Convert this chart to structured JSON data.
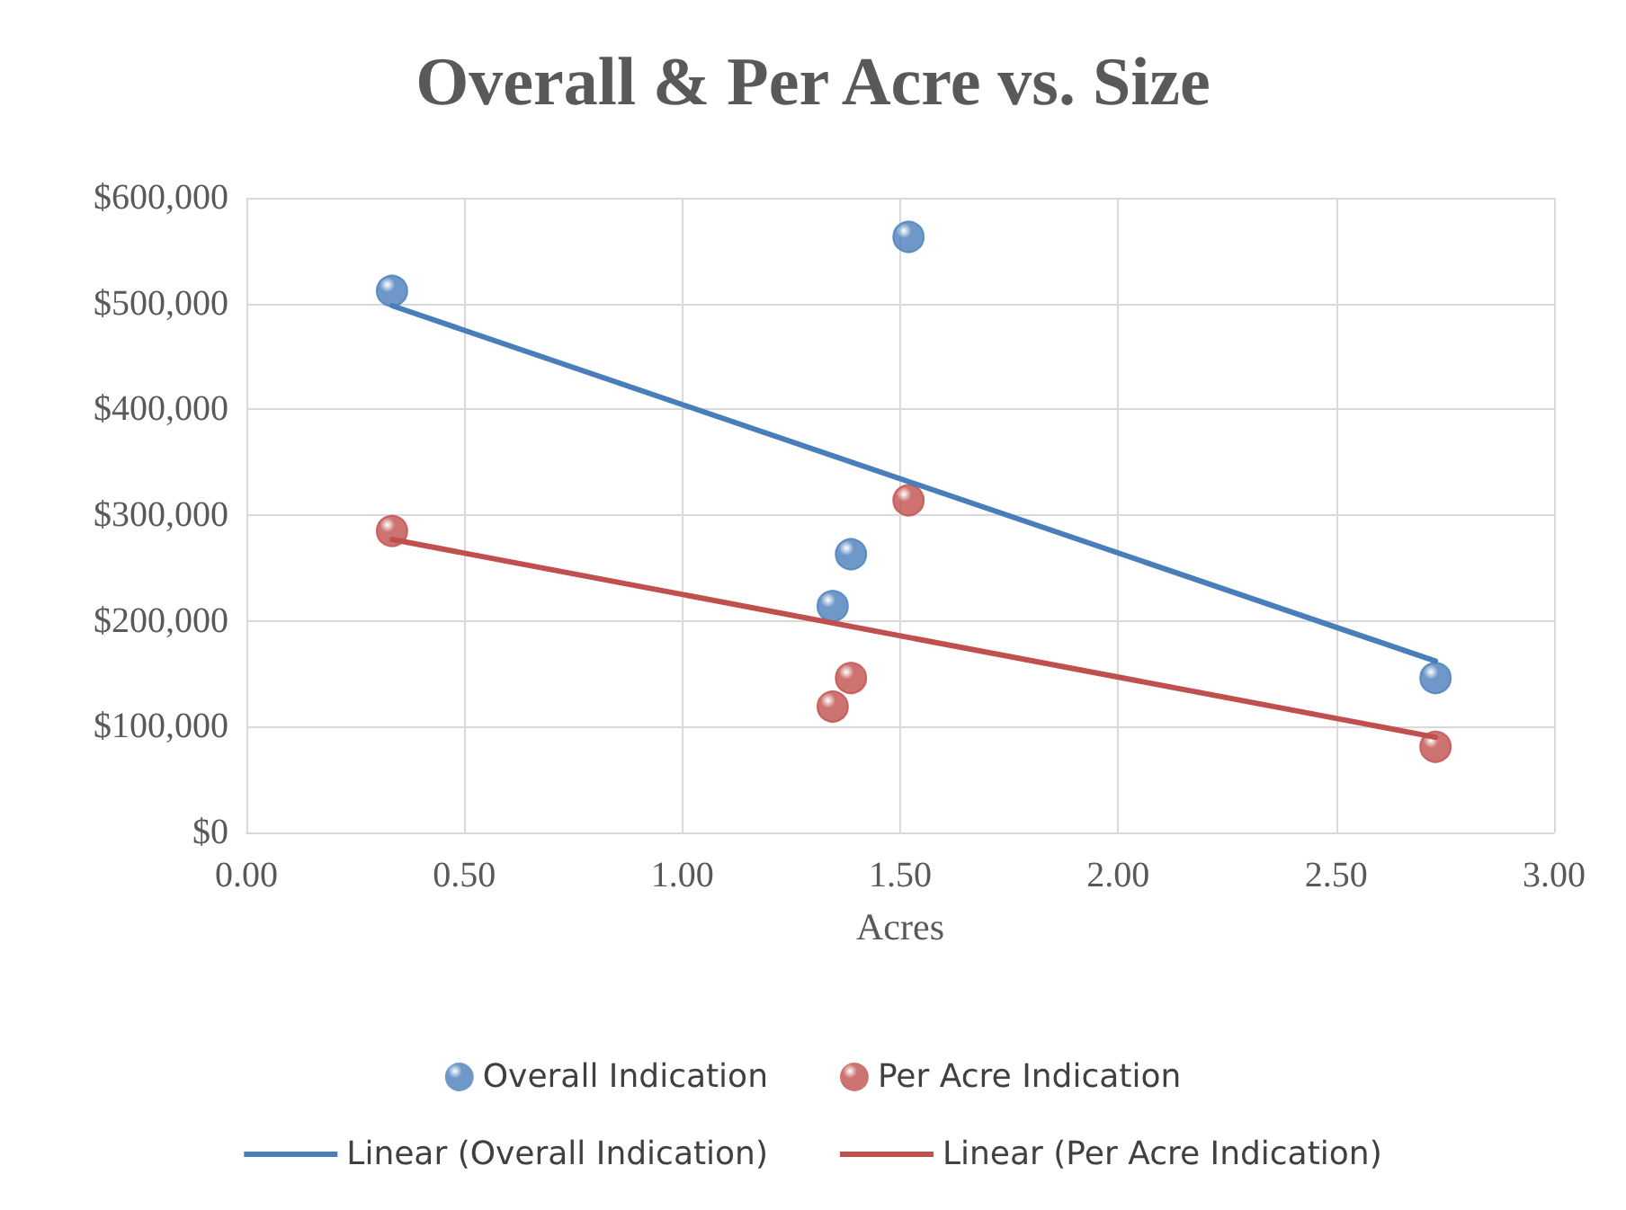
{
  "chart_data": {
    "type": "scatter",
    "title": "Overall & Per Acre vs. Size",
    "xlabel": "Acres",
    "xlim": [
      0,
      3
    ],
    "xticks": [
      {
        "value": 0,
        "label": "0.00"
      },
      {
        "value": 0.5,
        "label": "0.50"
      },
      {
        "value": 1,
        "label": "1.00"
      },
      {
        "value": 1.5,
        "label": "1.50"
      },
      {
        "value": 2,
        "label": "2.00"
      },
      {
        "value": 2.5,
        "label": "2.50"
      },
      {
        "value": 3,
        "label": "3.00"
      }
    ],
    "ylim": [
      0,
      600000
    ],
    "yticks": [
      {
        "value": 0,
        "label": "$0"
      },
      {
        "value": 100000,
        "label": "$100,000"
      },
      {
        "value": 200000,
        "label": "$200,000"
      },
      {
        "value": 300000,
        "label": "$300,000"
      },
      {
        "value": 400000,
        "label": "$400,000"
      },
      {
        "value": 500000,
        "label": "$500,000"
      },
      {
        "value": 600000,
        "label": "$600,000"
      }
    ],
    "grid": true,
    "legend": "bottom",
    "line_style": "solid",
    "series": [
      {
        "name": "Overall Indication",
        "marker": "circle",
        "color": "#4a7ebb",
        "x": [
          0.334,
          1.519,
          1.387,
          1.345,
          2.728
        ],
        "values": [
          512000,
          563000,
          263000,
          214000,
          146000
        ]
      },
      {
        "name": "Per Acre Indication",
        "marker": "circle",
        "color": "#c0504d",
        "x": [
          0.334,
          1.519,
          1.387,
          1.345,
          2.728
        ],
        "values": [
          285000,
          314000,
          146000,
          119000,
          81000
        ]
      },
      {
        "name": "Linear (Overall Indication)",
        "type": "line",
        "marker": "none",
        "color": "#4a7ebb",
        "x": [
          0.334,
          2.728
        ],
        "values": [
          498000,
          162000
        ]
      },
      {
        "name": "Linear (Per Acre Indication)",
        "type": "line",
        "marker": "none",
        "color": "#c0504d",
        "x": [
          0.334,
          2.728
        ],
        "values": [
          277000,
          90000
        ]
      }
    ]
  }
}
